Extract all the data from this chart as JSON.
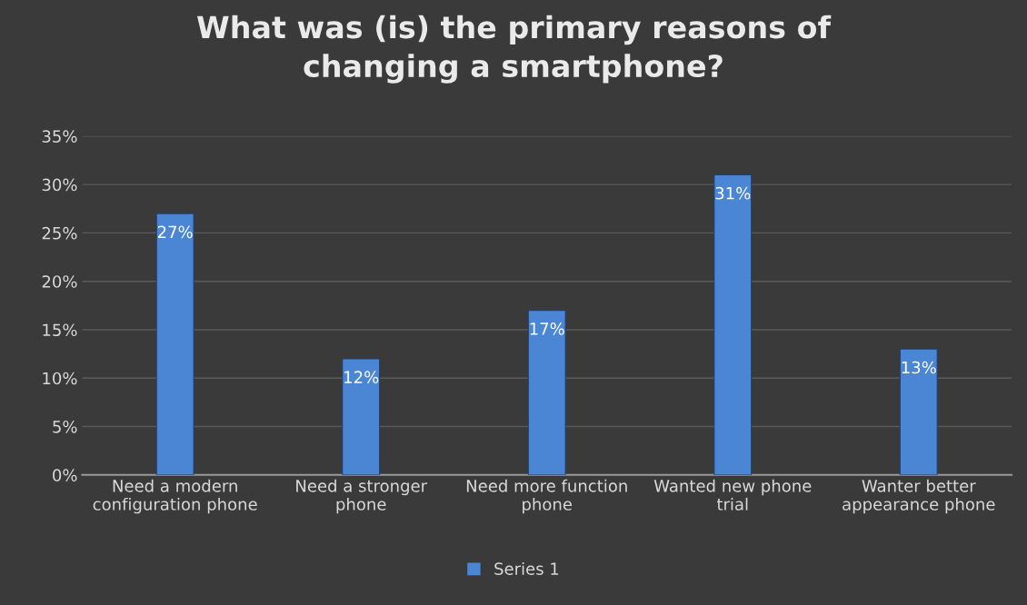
{
  "chart_data": {
    "type": "bar",
    "title": "What was (is) the primary reasons of\nchanging a smartphone?",
    "categories": [
      "Need a modern\nconfiguration phone",
      "Need a stronger\nphone",
      "Need more function\nphone",
      "Wanted new phone\ntrial",
      "Wanter better\nappearance phone"
    ],
    "series": [
      {
        "name": "Series 1",
        "color": "#4a86d4",
        "values": [
          27,
          12,
          17,
          31,
          13
        ],
        "value_labels": [
          "27%",
          "12%",
          "17%",
          "31%",
          "13%"
        ]
      }
    ],
    "ylim": [
      0,
      35
    ],
    "yticks": [
      {
        "value": 0,
        "label": "0%"
      },
      {
        "value": 5,
        "label": "5%"
      },
      {
        "value": 10,
        "label": "10%"
      },
      {
        "value": 15,
        "label": "15%"
      },
      {
        "value": 20,
        "label": "20%"
      },
      {
        "value": 25,
        "label": "25%"
      },
      {
        "value": 30,
        "label": "30%"
      },
      {
        "value": 35,
        "label": "35%"
      }
    ],
    "grid": "y",
    "legend": "bottom"
  }
}
